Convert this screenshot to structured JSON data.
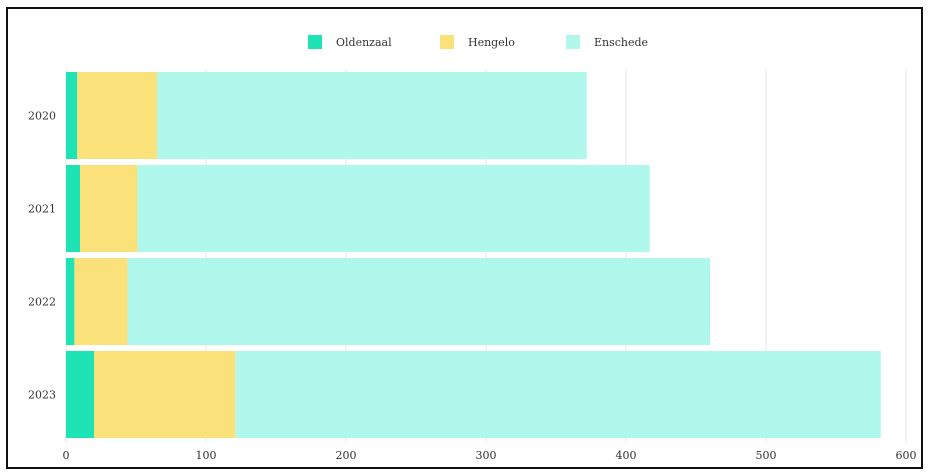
{
  "chart_data": {
    "type": "bar",
    "orientation": "horizontal",
    "stacked": true,
    "categories": [
      "2020",
      "2021",
      "2022",
      "2023"
    ],
    "series": [
      {
        "name": "Oldenzaal",
        "color": "#1ee3b5",
        "values": [
          8,
          10,
          6,
          20
        ]
      },
      {
        "name": "Hengelo",
        "color": "#fae17a",
        "values": [
          57,
          41,
          38,
          101
        ]
      },
      {
        "name": "Enschede",
        "color": "#b1f8ec",
        "values": [
          307,
          366,
          416,
          461
        ]
      }
    ],
    "xlim": [
      0,
      600
    ],
    "xticks": [
      "0",
      "100",
      "200",
      "300",
      "400",
      "500",
      "600"
    ],
    "grid": "vertical",
    "legend_position": "top-center"
  }
}
